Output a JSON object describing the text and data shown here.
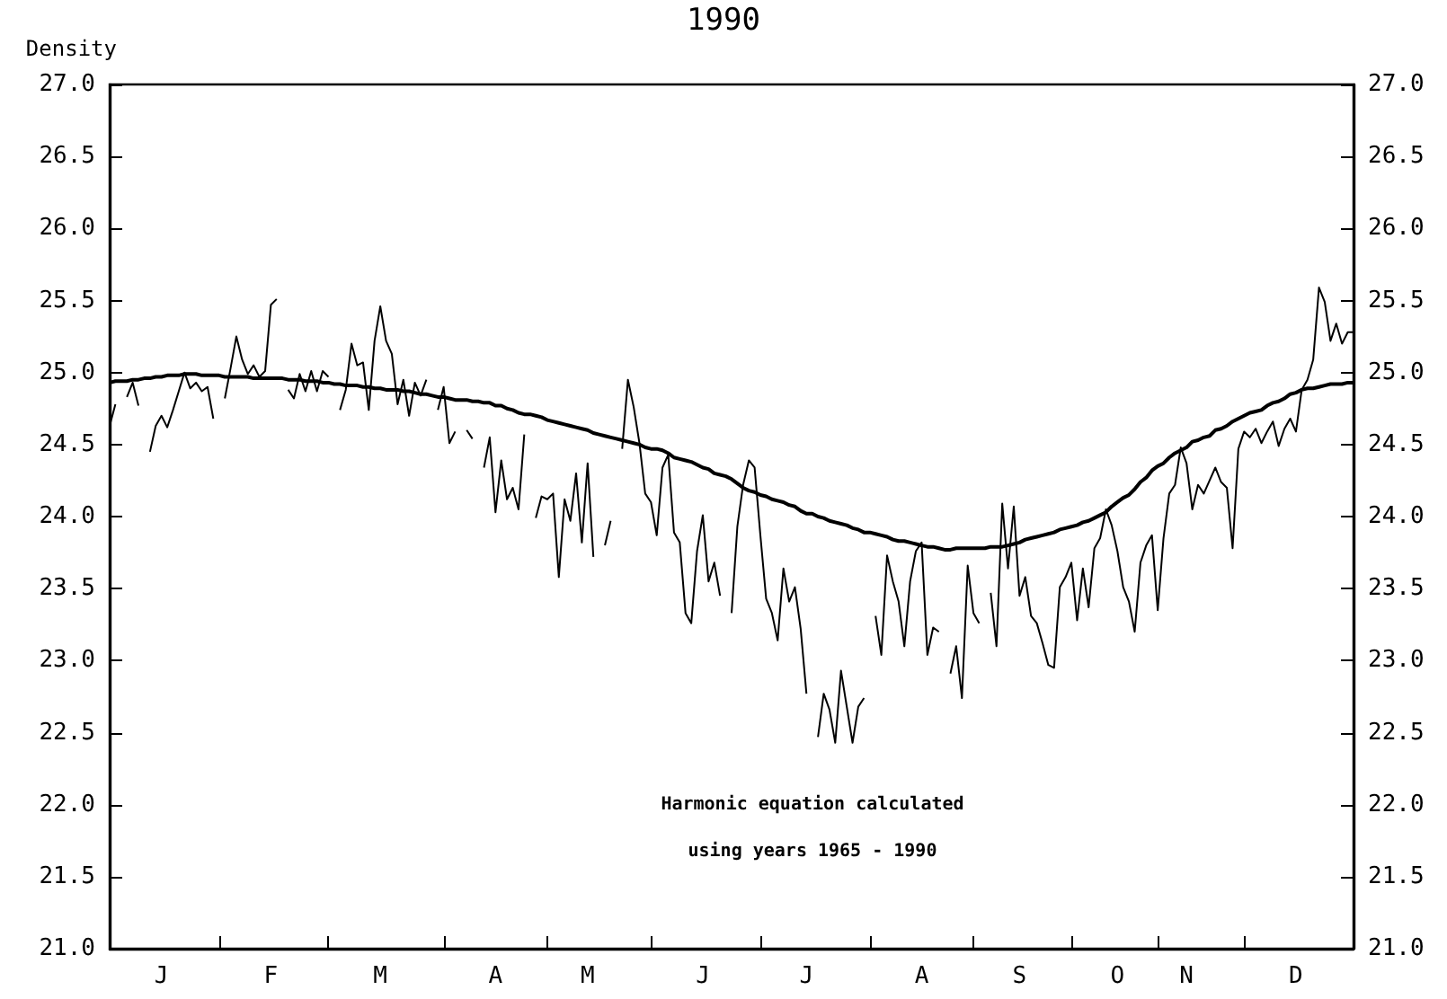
{
  "chart_data": {
    "type": "line",
    "title": "1990",
    "ylabel": "Density",
    "categories": [
      null,
      null,
      null,
      null,
      null,
      null,
      null,
      null,
      null,
      "J",
      null,
      null,
      null,
      null,
      null,
      null,
      null,
      null,
      null,
      null,
      null,
      null,
      null,
      null,
      null,
      null,
      null,
      null,
      "F",
      null,
      null,
      null,
      null,
      null,
      null,
      null,
      null,
      null,
      null,
      null,
      null,
      null,
      null,
      null,
      null,
      null,
      null,
      "M",
      null,
      null,
      null,
      null,
      null,
      null,
      null,
      null,
      null,
      null,
      null,
      null,
      null,
      null,
      null,
      null,
      null,
      null,
      null,
      "A",
      null,
      null,
      null,
      null,
      null,
      null,
      null,
      null,
      null,
      null,
      null,
      null,
      null,
      null,
      null,
      "M",
      null,
      null,
      null,
      null,
      null,
      null,
      null,
      null,
      null,
      null,
      null,
      null,
      null,
      null,
      null,
      null,
      null,
      null,
      null,
      "J",
      null,
      null,
      null,
      null,
      null,
      null,
      null,
      null,
      null,
      null,
      null,
      null,
      null,
      null,
      null,
      null,
      null,
      "J",
      null,
      null,
      null,
      null,
      null,
      null,
      null,
      null,
      null,
      null,
      null,
      null,
      null,
      null,
      null,
      null,
      null,
      null,
      null,
      "A",
      null,
      null,
      null,
      null,
      null,
      null,
      null,
      null,
      null,
      null,
      null,
      null,
      null,
      null,
      null,
      null,
      "S",
      null,
      null,
      null,
      null,
      null,
      null,
      null,
      null,
      null,
      null,
      null,
      null,
      null,
      null,
      null,
      null,
      "O",
      null,
      null,
      null,
      null,
      null,
      null,
      null,
      null,
      null,
      null,
      null,
      "N",
      null,
      null,
      null,
      null,
      null,
      null,
      null,
      null,
      null,
      null,
      null,
      null,
      null,
      null,
      null,
      null,
      null,
      null,
      "D",
      null,
      null,
      null,
      null,
      null,
      null,
      null,
      null,
      null,
      null
    ],
    "ylim": [
      21,
      27
    ],
    "yticks": [
      {
        "value": 21,
        "label": "21.0"
      },
      {
        "value": 21.5,
        "label": "21.5"
      },
      {
        "value": 22,
        "label": "22.0"
      },
      {
        "value": 22.5,
        "label": "22.5"
      },
      {
        "value": 23,
        "label": "23.0"
      },
      {
        "value": 23.5,
        "label": "23.5"
      },
      {
        "value": 24,
        "label": "24.0"
      },
      {
        "value": 24.5,
        "label": "24.5"
      },
      {
        "value": 25,
        "label": "25.0"
      },
      {
        "value": 25.5,
        "label": "25.5"
      },
      {
        "value": 26,
        "label": "26.0"
      },
      {
        "value": 26.5,
        "label": "26.5"
      },
      {
        "value": 27,
        "label": "27.0"
      }
    ],
    "y2lim": [
      21,
      27
    ],
    "y2ticks": [
      {
        "value": 21,
        "label": "21.0"
      },
      {
        "value": 21.5,
        "label": "21.5"
      },
      {
        "value": 22,
        "label": "22.0"
      },
      {
        "value": 22.5,
        "label": "22.5"
      },
      {
        "value": 23,
        "label": "23.0"
      },
      {
        "value": 23.5,
        "label": "23.5"
      },
      {
        "value": 24,
        "label": "24.0"
      },
      {
        "value": 24.5,
        "label": "24.5"
      },
      {
        "value": 25,
        "label": "25.0"
      },
      {
        "value": 25.5,
        "label": "25.5"
      },
      {
        "value": 26,
        "label": "26.0"
      },
      {
        "value": 26.5,
        "label": "26.5"
      },
      {
        "value": 27,
        "label": "27.0"
      }
    ],
    "grid": false,
    "marker": "none",
    "annotations": [
      "Harmonic equation calculated",
      "using years 1965 - 1990"
    ],
    "series": [
      {
        "color": "#000000",
        "values": [
          24.63,
          24.78,
          null,
          24.83,
          24.93,
          24.77,
          null,
          24.45,
          24.63,
          24.7,
          24.62,
          24.74,
          24.87,
          25.0,
          24.89,
          24.93,
          24.87,
          24.9,
          24.68,
          null,
          24.82,
          25.03,
          25.25,
          25.09,
          24.99,
          25.05,
          24.97,
          25.01,
          25.47,
          25.51,
          null,
          24.88,
          24.82,
          24.99,
          24.87,
          25.01,
          24.87,
          25.01,
          24.97,
          null,
          24.74,
          24.88,
          25.2,
          25.05,
          25.07,
          24.74,
          25.22,
          25.46,
          25.22,
          25.13,
          24.78,
          24.95,
          24.7,
          24.93,
          24.84,
          24.95,
          null,
          24.74,
          24.9,
          24.51,
          24.59,
          null,
          24.6,
          24.54,
          null,
          24.34,
          24.55,
          24.03,
          24.39,
          24.12,
          24.2,
          24.05,
          24.57,
          null,
          23.99,
          24.14,
          24.12,
          24.16,
          23.58,
          24.12,
          23.97,
          24.3,
          23.82,
          24.37,
          23.72,
          null,
          23.8,
          23.97,
          null,
          24.47,
          24.95,
          24.76,
          24.51,
          24.16,
          24.1,
          23.87,
          24.34,
          24.43,
          23.89,
          23.82,
          23.33,
          23.26,
          23.76,
          24.01,
          23.55,
          23.68,
          23.45,
          null,
          23.33,
          23.93,
          24.22,
          24.39,
          24.34,
          23.87,
          23.43,
          23.33,
          23.14,
          23.64,
          23.41,
          23.51,
          23.22,
          22.77,
          null,
          22.47,
          22.77,
          22.66,
          22.43,
          22.93,
          22.68,
          22.43,
          22.68,
          22.74,
          null,
          23.31,
          23.04,
          23.73,
          23.55,
          23.41,
          23.1,
          23.55,
          23.76,
          23.82,
          23.04,
          23.23,
          23.2,
          null,
          22.91,
          23.1,
          22.74,
          23.66,
          23.33,
          23.26,
          null,
          23.47,
          23.1,
          24.09,
          23.64,
          24.07,
          23.45,
          23.58,
          23.31,
          23.26,
          23.12,
          22.97,
          22.95,
          23.51,
          23.58,
          23.68,
          23.28,
          23.64,
          23.37,
          23.78,
          23.85,
          24.05,
          23.94,
          23.76,
          23.51,
          23.41,
          23.2,
          23.68,
          23.8,
          23.87,
          23.35,
          23.85,
          24.16,
          24.22,
          24.48,
          24.37,
          24.05,
          24.22,
          24.16,
          24.25,
          24.34,
          24.24,
          24.2,
          23.78,
          24.47,
          24.59,
          24.55,
          24.61,
          24.51,
          24.59,
          24.66,
          24.49,
          24.61,
          24.68,
          24.59,
          24.88,
          24.95,
          25.09,
          25.59,
          25.49,
          25.22,
          25.34,
          25.2,
          25.28,
          25.28
        ]
      },
      {
        "color": "#000000",
        "values": [
          24.93,
          24.94,
          24.94,
          24.94,
          24.95,
          24.95,
          24.96,
          24.96,
          24.97,
          24.97,
          24.98,
          24.98,
          24.98,
          24.99,
          24.99,
          24.99,
          24.98,
          24.98,
          24.98,
          24.98,
          24.97,
          24.97,
          24.97,
          24.97,
          24.97,
          24.96,
          24.96,
          24.96,
          24.96,
          24.96,
          24.96,
          24.95,
          24.95,
          24.95,
          24.94,
          24.94,
          24.94,
          24.93,
          24.93,
          24.92,
          24.92,
          24.91,
          24.91,
          24.91,
          24.9,
          24.9,
          24.89,
          24.89,
          24.88,
          24.88,
          24.88,
          24.87,
          24.87,
          24.86,
          24.85,
          24.85,
          24.84,
          24.83,
          24.83,
          24.82,
          24.81,
          24.81,
          24.81,
          24.8,
          24.8,
          24.79,
          24.79,
          24.77,
          24.77,
          24.75,
          24.74,
          24.72,
          24.71,
          24.71,
          24.7,
          24.69,
          24.67,
          24.66,
          24.65,
          24.64,
          24.63,
          24.62,
          24.61,
          24.6,
          24.58,
          24.57,
          24.56,
          24.55,
          24.54,
          24.53,
          24.52,
          24.51,
          24.5,
          24.48,
          24.47,
          24.47,
          24.46,
          24.44,
          24.41,
          24.4,
          24.39,
          24.38,
          24.36,
          24.34,
          24.33,
          24.3,
          24.29,
          24.28,
          24.26,
          24.23,
          24.2,
          24.18,
          24.17,
          24.15,
          24.14,
          24.12,
          24.11,
          24.1,
          24.08,
          24.07,
          24.04,
          24.02,
          24.02,
          24.0,
          23.99,
          23.97,
          23.96,
          23.95,
          23.94,
          23.92,
          23.91,
          23.89,
          23.89,
          23.88,
          23.87,
          23.86,
          23.84,
          23.83,
          23.83,
          23.82,
          23.81,
          23.8,
          23.79,
          23.79,
          23.78,
          23.77,
          23.77,
          23.78,
          23.78,
          23.78,
          23.78,
          23.78,
          23.78,
          23.79,
          23.79,
          23.79,
          23.8,
          23.81,
          23.82,
          23.84,
          23.85,
          23.86,
          23.87,
          23.88,
          23.89,
          23.91,
          23.92,
          23.93,
          23.94,
          23.96,
          23.97,
          23.99,
          24.01,
          24.03,
          24.07,
          24.1,
          24.13,
          24.15,
          24.19,
          24.24,
          24.27,
          24.32,
          24.35,
          24.37,
          24.41,
          24.44,
          24.46,
          24.48,
          24.52,
          24.53,
          24.55,
          24.56,
          24.6,
          24.61,
          24.63,
          24.66,
          24.68,
          24.7,
          24.72,
          24.73,
          24.74,
          24.77,
          24.79,
          24.8,
          24.82,
          24.85,
          24.86,
          24.88,
          24.89,
          24.89,
          24.9,
          24.91,
          24.92,
          24.92,
          24.92,
          24.93,
          24.93
        ]
      }
    ]
  }
}
